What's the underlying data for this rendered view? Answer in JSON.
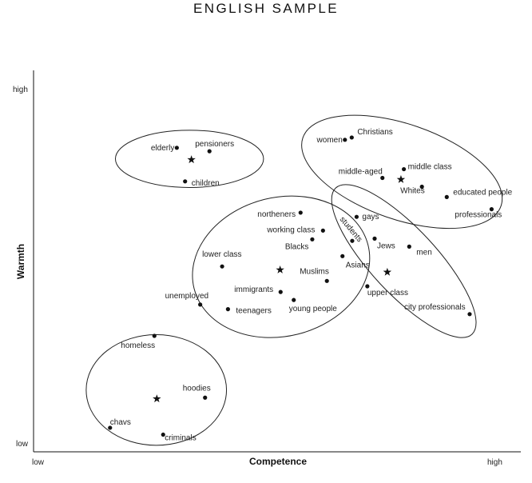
{
  "chart_data": {
    "type": "scatter",
    "title": "ENGLISH SAMPLE",
    "xlabel": "Competence",
    "ylabel": "Warmth",
    "xlim": [
      0,
      100
    ],
    "ylim": [
      0,
      100
    ],
    "x_ticks": [
      {
        "value": 0,
        "label": "low"
      },
      {
        "value": 100,
        "label": "high"
      }
    ],
    "y_ticks": [
      {
        "value": 0,
        "label": "low"
      },
      {
        "value": 100,
        "label": "high"
      }
    ],
    "grid": false,
    "points": [
      {
        "label": "elderly",
        "x": 29.4,
        "y": 79.7
      },
      {
        "label": "pensioners",
        "x": 36.1,
        "y": 78.8
      },
      {
        "label": "children",
        "x": 31.1,
        "y": 70.9
      },
      {
        "label": "women",
        "x": 63.9,
        "y": 81.8
      },
      {
        "label": "Christians",
        "x": 65.3,
        "y": 82.4
      },
      {
        "label": "middle-aged",
        "x": 71.6,
        "y": 71.8
      },
      {
        "label": "middle class",
        "x": 76.0,
        "y": 74.1
      },
      {
        "label": "Whites",
        "x": 79.7,
        "y": 69.5
      },
      {
        "label": "educated people",
        "x": 84.8,
        "y": 66.8
      },
      {
        "label": "professionals",
        "x": 94.0,
        "y": 63.6
      },
      {
        "label": "northeners",
        "x": 54.8,
        "y": 62.7
      },
      {
        "label": "working class",
        "x": 59.4,
        "y": 58.0
      },
      {
        "label": "Blacks",
        "x": 57.2,
        "y": 55.7
      },
      {
        "label": "lower class",
        "x": 38.7,
        "y": 48.6
      },
      {
        "label": "Muslims",
        "x": 60.2,
        "y": 44.8
      },
      {
        "label": "immigrants",
        "x": 50.7,
        "y": 41.9
      },
      {
        "label": "unemployed",
        "x": 34.2,
        "y": 38.6
      },
      {
        "label": "teenagers",
        "x": 39.9,
        "y": 37.4
      },
      {
        "label": "young people",
        "x": 53.4,
        "y": 39.8
      },
      {
        "label": "gays",
        "x": 66.3,
        "y": 61.6
      },
      {
        "label": "students",
        "x": 65.4,
        "y": 55.3
      },
      {
        "label": "Jews",
        "x": 70.0,
        "y": 55.9
      },
      {
        "label": "men",
        "x": 77.1,
        "y": 53.8
      },
      {
        "label": "Asians",
        "x": 63.4,
        "y": 51.3
      },
      {
        "label": "upper class",
        "x": 68.5,
        "y": 43.4
      },
      {
        "label": "city professionals",
        "x": 89.5,
        "y": 36.1
      },
      {
        "label": "homeless",
        "x": 24.8,
        "y": 30.4
      },
      {
        "label": "hoodies",
        "x": 35.2,
        "y": 14.2
      },
      {
        "label": "chavs",
        "x": 15.7,
        "y": 6.3
      },
      {
        "label": "criminals",
        "x": 26.6,
        "y": 4.5
      }
    ],
    "centroids": [
      {
        "x": 32.4,
        "y": 76.6
      },
      {
        "x": 75.4,
        "y": 71.4
      },
      {
        "x": 50.6,
        "y": 47.7
      },
      {
        "x": 72.6,
        "y": 47.1
      },
      {
        "x": 25.3,
        "y": 13.9
      }
    ],
    "clusters": [
      {
        "cx": 32.0,
        "cy": 76.8,
        "rx": 15.2,
        "ry": 7.5,
        "angle": 0
      },
      {
        "cx": 75.6,
        "cy": 73.4,
        "rx": 21.5,
        "ry": 12.5,
        "angle": 19
      },
      {
        "cx": 50.8,
        "cy": 48.5,
        "rx": 18.4,
        "ry": 18.2,
        "angle": -14
      },
      {
        "cx": 76.0,
        "cy": 50.0,
        "rx": 20.5,
        "ry": 8.6,
        "angle": 47
      },
      {
        "cx": 25.2,
        "cy": 16.2,
        "rx": 14.4,
        "ry": 14.5,
        "angle": 0
      }
    ]
  }
}
